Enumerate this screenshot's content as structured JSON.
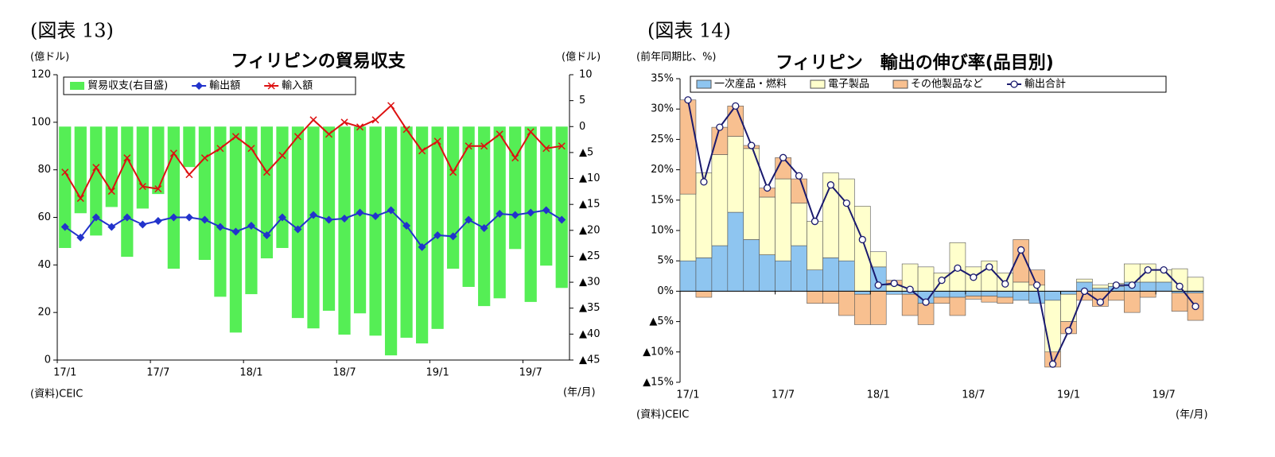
{
  "chart_data": [
    {
      "type": "combo",
      "figure_label": "(図表 13)",
      "title": "フィリピンの貿易収支",
      "y_label": "(億ドル)",
      "y2_label": "(億ドル)",
      "x_label": "(年/月)",
      "source": "(資料)CEIC",
      "categories": [
        "17/1",
        null,
        null,
        null,
        null,
        null,
        "17/7",
        null,
        null,
        null,
        null,
        null,
        "18/1",
        null,
        null,
        null,
        null,
        null,
        "18/7",
        null,
        null,
        null,
        null,
        null,
        "19/1",
        null,
        null,
        null,
        null,
        null,
        "19/7",
        null,
        null
      ],
      "ylim": [
        0,
        120
      ],
      "yticks": [
        0,
        20,
        40,
        60,
        80,
        100,
        120
      ],
      "y2lim": [
        -45,
        10
      ],
      "y2ticks": [
        10,
        5,
        0,
        {
          "value": -5,
          "label": "▲5"
        },
        {
          "value": -10,
          "label": "▲10"
        },
        {
          "value": -15,
          "label": "▲15"
        },
        {
          "value": -20,
          "label": "▲20"
        },
        {
          "value": -25,
          "label": "▲25"
        },
        {
          "value": -30,
          "label": "▲30"
        },
        {
          "value": -35,
          "label": "▲35"
        },
        {
          "value": -40,
          "label": "▲40"
        },
        {
          "value": -45,
          "label": "▲45"
        }
      ],
      "grid": false,
      "stacked": false,
      "series": [
        {
          "name": "貿易収支(右目盛)",
          "type": "bar",
          "axis": "y2",
          "color": "#55ee55",
          "values": [
            -23.4,
            -16.7,
            -21,
            -15.5,
            -25.1,
            -15.8,
            -13,
            -27.4,
            -7.8,
            -25.7,
            -32.8,
            -39.7,
            -32.3,
            -25.4,
            -23.4,
            -36.9,
            -38.9,
            -35.5,
            -40.1,
            -36,
            -40.3,
            -44.1,
            -40.7,
            -41.8,
            -39,
            -27.4,
            -30.9,
            -34.6,
            -33.1,
            -23.6,
            -33.8,
            -26.8,
            -31.1
          ]
        },
        {
          "name": "輸出額",
          "type": "line",
          "marker": "diamond",
          "color": "#2233cc",
          "values": [
            56,
            51.5,
            60,
            56,
            60,
            57,
            58.5,
            60,
            60,
            59,
            56,
            54,
            56.5,
            52.5,
            60,
            55,
            61,
            59,
            59.5,
            62,
            60.5,
            63,
            56.5,
            47.5,
            52.5,
            52,
            59,
            55.5,
            61.5,
            61,
            62,
            63,
            59
          ]
        },
        {
          "name": "輸入額",
          "type": "line",
          "marker": "x",
          "color": "#dd1111",
          "values": [
            79,
            68,
            81,
            71,
            85,
            73,
            72,
            87,
            78,
            85,
            89,
            94,
            89,
            79,
            86,
            94,
            101,
            95,
            100,
            98,
            101,
            107,
            97,
            88,
            92,
            79,
            90,
            90,
            95,
            85,
            96,
            89,
            90
          ]
        }
      ]
    },
    {
      "type": "combo",
      "figure_label": "(図表 14)",
      "title": "フィリピン　輸出の伸び率(品目別)",
      "y_label": "(前年同期比、%)",
      "x_label": "(年/月)",
      "source": "(資料)CEIC",
      "categories": [
        "17/1",
        null,
        null,
        null,
        null,
        null,
        "17/7",
        null,
        null,
        null,
        null,
        null,
        "18/1",
        null,
        null,
        null,
        null,
        null,
        "18/7",
        null,
        null,
        null,
        null,
        null,
        "19/1",
        null,
        null,
        null,
        null,
        null,
        "19/7",
        null,
        null
      ],
      "ylim": [
        -15,
        35
      ],
      "yticks": [
        {
          "value": 35,
          "label": "35%"
        },
        {
          "value": 30,
          "label": "30%"
        },
        {
          "value": 25,
          "label": "25%"
        },
        {
          "value": 20,
          "label": "20%"
        },
        {
          "value": 15,
          "label": "15%"
        },
        {
          "value": 10,
          "label": "10%"
        },
        {
          "value": 5,
          "label": "5%"
        },
        {
          "value": 0,
          "label": "0%"
        },
        {
          "value": -5,
          "label": "▲5%"
        },
        {
          "value": -10,
          "label": "▲10%"
        },
        {
          "value": -15,
          "label": "▲15%"
        }
      ],
      "grid": false,
      "stacked": true,
      "series": [
        {
          "name": "一次産品・燃料",
          "type": "bar",
          "color": "#8ec5f0",
          "values": [
            5,
            5.5,
            7.5,
            13,
            8.5,
            6,
            5,
            7.5,
            3.5,
            5.5,
            5,
            -0.5,
            4,
            -0.5,
            -0.5,
            -2,
            -1,
            -1,
            -0.8,
            -0.8,
            -1,
            -1.5,
            -2,
            -1.5,
            -0.5,
            1.5,
            0.5,
            0.8,
            1.5,
            1.5,
            1.5,
            -0.3,
            -0.3
          ]
        },
        {
          "name": "電子製品",
          "type": "bar",
          "color": "#ffffcc",
          "values": [
            11,
            14,
            15,
            12.5,
            15,
            9.5,
            13.5,
            7,
            8,
            14,
            13.5,
            14,
            2.5,
            1,
            4.5,
            4,
            3,
            8,
            4,
            5,
            3,
            1.5,
            1,
            -8.5,
            -4.5,
            0.5,
            0.5,
            0.5,
            3,
            3,
            2,
            3.7,
            2.3
          ]
        },
        {
          "name": "その他製品など",
          "type": "bar",
          "color": "#f8c090",
          "values": [
            15.5,
            -1,
            4.5,
            5,
            0.5,
            1.5,
            3.5,
            4,
            -2,
            -2,
            -4,
            -5,
            -5.5,
            0.8,
            -3.5,
            -3.5,
            -1,
            -3,
            -0.5,
            -1,
            -1,
            7,
            2.5,
            -2.5,
            -2,
            -1.5,
            -2.5,
            -1.5,
            -3.5,
            -1,
            0,
            -3,
            -4.5
          ]
        },
        {
          "name": "輸出合計",
          "type": "line",
          "marker": "circle",
          "color": "#1a1a6e",
          "values": [
            31.5,
            18,
            27,
            30.5,
            24,
            17,
            22,
            19,
            11.5,
            17.5,
            14.5,
            8.5,
            1,
            1.3,
            0.3,
            -1.8,
            1.8,
            3.8,
            2.3,
            4,
            1.2,
            6.8,
            1,
            -12,
            -6.5,
            0,
            -1.8,
            1,
            1,
            3.5,
            3.5,
            0.8,
            -2.5
          ]
        }
      ]
    }
  ]
}
